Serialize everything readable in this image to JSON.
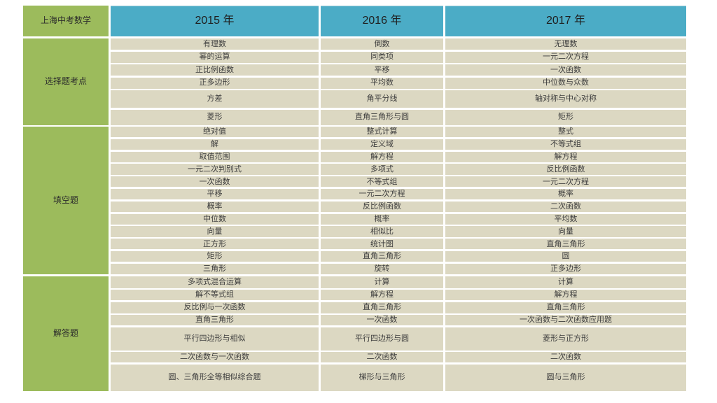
{
  "table": {
    "corner_label": "上海中考数学",
    "years": [
      "2015 年",
      "2016 年",
      "2017 年"
    ],
    "sections": [
      {
        "label": "选择题考点",
        "rows": [
          [
            "有理数",
            "倒数",
            "无理数"
          ],
          [
            "幂的运算",
            "同类项",
            "一元二次方程"
          ],
          [
            "正比例函数",
            "平移",
            "一次函数"
          ],
          [
            "正多边形",
            "平均数",
            "中位数与众数"
          ],
          [
            "方差",
            "角平分线",
            "轴对称与中心对称"
          ],
          [
            "菱形",
            "直角三角形与圆",
            "矩形"
          ]
        ]
      },
      {
        "label": "填空题",
        "rows": [
          [
            "绝对值",
            "整式计算",
            "整式"
          ],
          [
            "解",
            "定义域",
            "不等式组"
          ],
          [
            "取值范围",
            "解方程",
            "解方程"
          ],
          [
            "一元二次判别式",
            "多项式",
            "反比例函数"
          ],
          [
            "一次函数",
            "不等式组",
            "一元二次方程"
          ],
          [
            "平移",
            "一元二次方程",
            "概率"
          ],
          [
            "概率",
            "反比例函数",
            "二次函数"
          ],
          [
            "中位数",
            "概率",
            "平均数"
          ],
          [
            "向量",
            "相似比",
            "向量"
          ],
          [
            "正方形",
            "统计图",
            "直角三角形"
          ],
          [
            "矩形",
            "直角三角形",
            "圆"
          ],
          [
            "三角形",
            "旋转",
            "正多边形"
          ]
        ]
      },
      {
        "label": "解答题",
        "rows": [
          [
            "多项式混合运算",
            "计算",
            "计算"
          ],
          [
            "解不等式组",
            "解方程",
            "解方程"
          ],
          [
            "反比例与一次函数",
            "直角三角形",
            "直角三角形"
          ],
          [
            "直角三角形",
            "一次函数",
            "一次函数与二次函数应用题"
          ],
          [
            "平行四边形与相似",
            "平行四边形与圆",
            "菱形与正方形"
          ],
          [
            "二次函数与一次函数",
            "二次函数",
            "二次函数"
          ],
          [
            "圆、三角形全等相似综合题",
            "梯形与三角形",
            "圆与三角形"
          ]
        ]
      }
    ],
    "colors": {
      "label_green": "#9CBB5C",
      "header_blue": "#4BACC6",
      "cell_tan": "#DCD8C2"
    }
  }
}
